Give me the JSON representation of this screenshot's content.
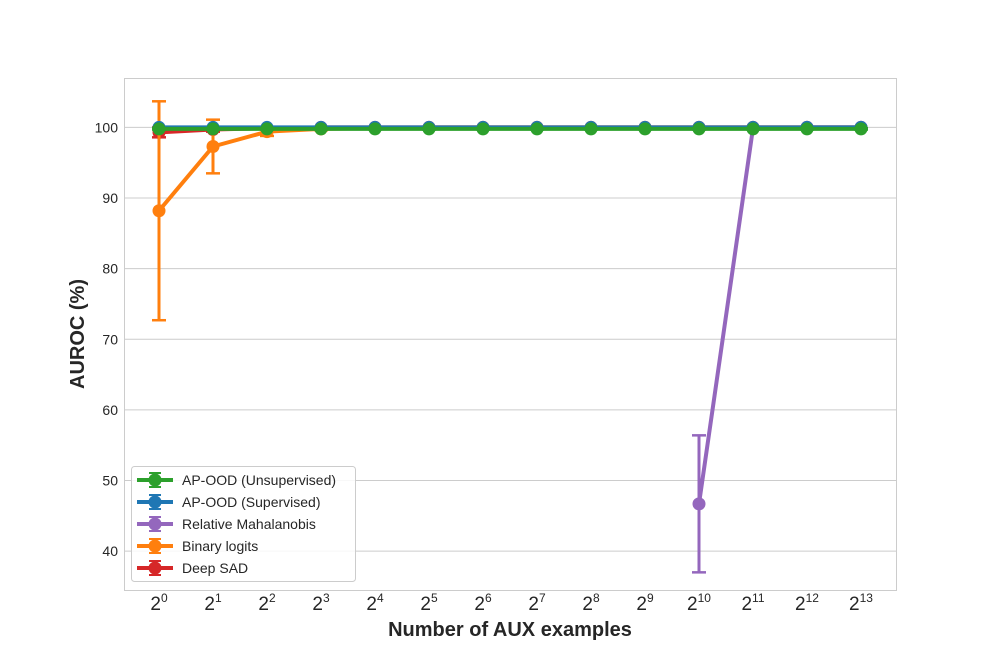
{
  "chart_data": {
    "type": "line",
    "title": "",
    "xlabel": "Number of AUX examples",
    "ylabel": "AUROC (%)",
    "x_scale": "log2",
    "x": [
      1,
      2,
      4,
      8,
      16,
      32,
      64,
      128,
      256,
      512,
      1024,
      2048,
      4096,
      8192
    ],
    "x_tick_labels": [
      {
        "base": "2",
        "exp": "0"
      },
      {
        "base": "2",
        "exp": "1"
      },
      {
        "base": "2",
        "exp": "2"
      },
      {
        "base": "2",
        "exp": "3"
      },
      {
        "base": "2",
        "exp": "4"
      },
      {
        "base": "2",
        "exp": "5"
      },
      {
        "base": "2",
        "exp": "6"
      },
      {
        "base": "2",
        "exp": "7"
      },
      {
        "base": "2",
        "exp": "8"
      },
      {
        "base": "2",
        "exp": "9"
      },
      {
        "base": "2",
        "exp": "10"
      },
      {
        "base": "2",
        "exp": "11"
      },
      {
        "base": "2",
        "exp": "12"
      },
      {
        "base": "2",
        "exp": "13"
      }
    ],
    "y_ticks": [
      "40",
      "50",
      "60",
      "70",
      "80",
      "90",
      "100"
    ],
    "ylim": [
      34.5,
      107
    ],
    "grid": {
      "y": true,
      "x": false
    },
    "legend_position": "bottom-left",
    "series": [
      {
        "name": "Deep SAD",
        "color": "#d62728",
        "values": [
          99.3,
          99.7,
          99.9,
          100,
          100,
          100,
          100,
          100,
          100,
          100,
          100,
          100,
          100,
          100
        ],
        "errors": [
          0.7,
          0.3,
          0.1,
          0,
          0,
          0,
          0,
          0,
          0,
          0,
          0,
          0,
          0,
          0
        ]
      },
      {
        "name": "Binary logits",
        "color": "#ff7f0e",
        "values": [
          88.2,
          97.3,
          99.4,
          99.8,
          99.9,
          100,
          100,
          100,
          100,
          100,
          100,
          100,
          100,
          100
        ],
        "errors": [
          15.5,
          3.8,
          0.6,
          0.2,
          0.1,
          0,
          0,
          0,
          0,
          0,
          0,
          0,
          0,
          0
        ]
      },
      {
        "name": "Relative Mahalanobis",
        "color": "#9467bd",
        "values": [
          null,
          null,
          null,
          null,
          null,
          null,
          null,
          null,
          null,
          null,
          46.7,
          99.9,
          100,
          100
        ],
        "errors": [
          null,
          null,
          null,
          null,
          null,
          null,
          null,
          null,
          null,
          null,
          9.7,
          0.1,
          0,
          0
        ]
      },
      {
        "name": "AP-OOD (Supervised)",
        "color": "#1f77b4",
        "values": [
          100,
          100,
          100,
          100,
          100,
          100,
          100,
          100,
          100,
          100,
          100,
          100,
          100,
          100
        ],
        "errors": [
          0,
          0,
          0,
          0,
          0,
          0,
          0,
          0,
          0,
          0,
          0,
          0,
          0,
          0
        ]
      },
      {
        "name": "AP-OOD (Unsupervised)",
        "color": "#2ca02c",
        "values": [
          99.8,
          99.8,
          99.8,
          99.8,
          99.8,
          99.8,
          99.8,
          99.8,
          99.8,
          99.8,
          99.8,
          99.8,
          99.8,
          99.8
        ],
        "errors": [
          0.1,
          0.1,
          0.1,
          0.1,
          0.1,
          0.1,
          0.1,
          0.1,
          0.1,
          0.1,
          0.1,
          0.1,
          0.1,
          0.1
        ]
      }
    ],
    "legend_order": [
      "AP-OOD (Unsupervised)",
      "AP-OOD (Supervised)",
      "Relative Mahalanobis",
      "Binary logits",
      "Deep SAD"
    ]
  }
}
